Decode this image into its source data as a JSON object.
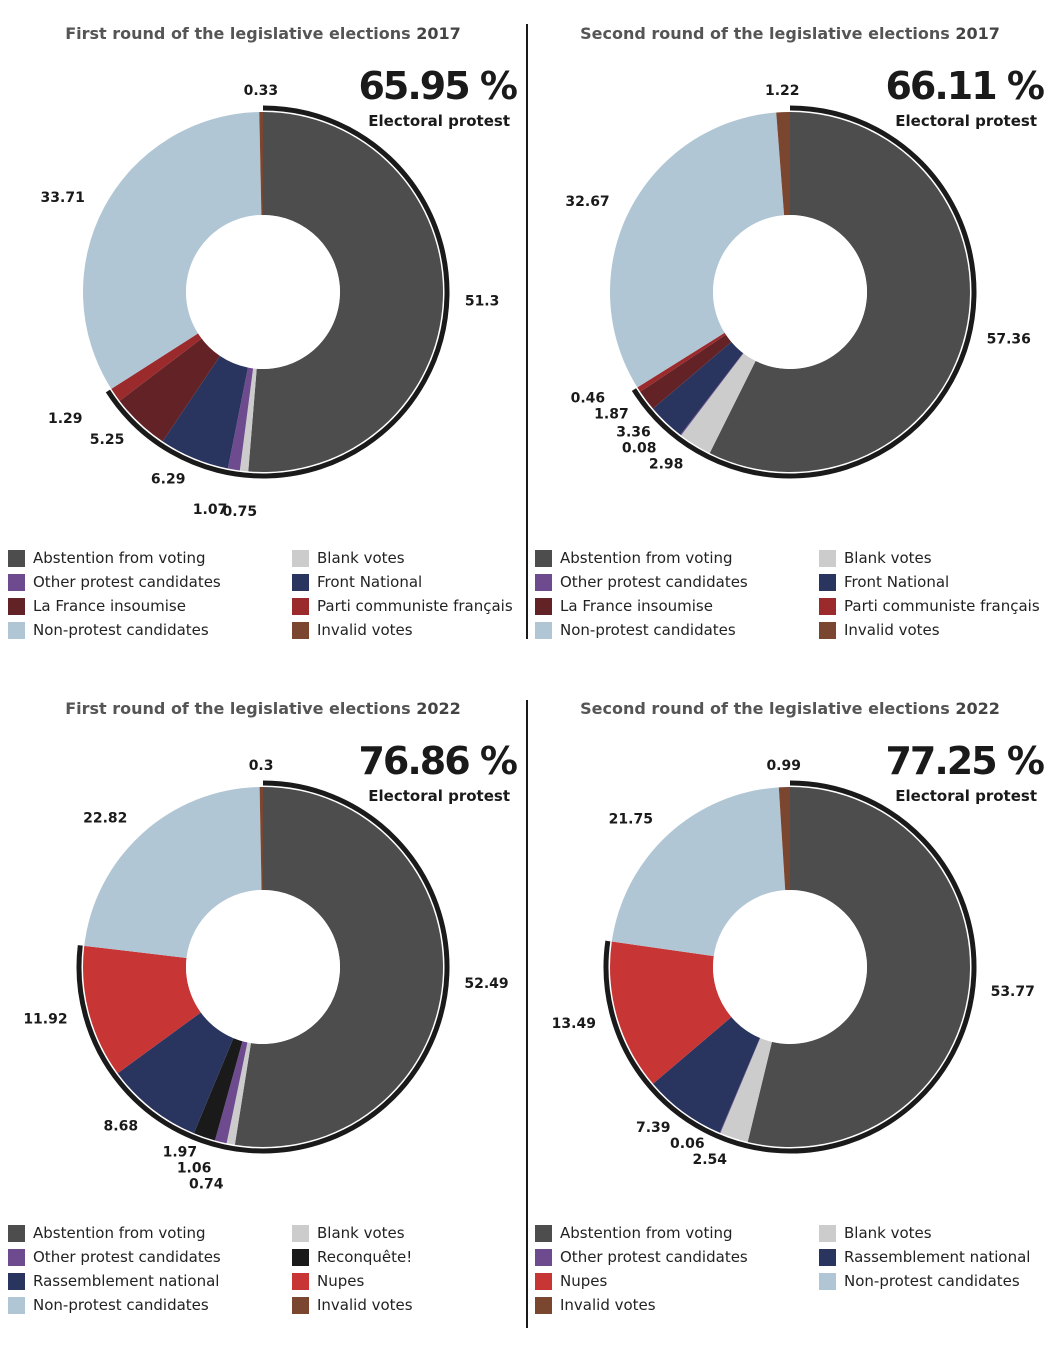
{
  "chart_data": [
    {
      "type": "pie",
      "title_prefix": "First round of the legislative elections",
      "title_year": "2017",
      "headline": "65.95 %",
      "headline_label": "Electoral protest",
      "slices": [
        {
          "name": "Abstention from voting",
          "value": 51.3,
          "label": "51.3",
          "color": "#4d4d4d",
          "protest": true
        },
        {
          "name": "Blank votes",
          "value": 0.75,
          "label": "0.75",
          "color": "#cccccc",
          "protest": true
        },
        {
          "name": "Other protest candidates",
          "value": 1.07,
          "label": "1.07",
          "color": "#6e4a8e",
          "protest": true
        },
        {
          "name": "Front National",
          "value": 6.29,
          "label": "6.29",
          "color": "#2a355f",
          "protest": true
        },
        {
          "name": "La France insoumise",
          "value": 5.25,
          "label": "5.25",
          "color": "#632225",
          "protest": true
        },
        {
          "name": "Parti communiste français",
          "value": 1.29,
          "label": "1.29",
          "color": "#9a2a2c",
          "protest": true
        },
        {
          "name": "Non-protest candidates",
          "value": 33.71,
          "label": "33.71",
          "color": "#b1c6d4",
          "protest": false
        },
        {
          "name": "Invalid votes",
          "value": 0.33,
          "label": "0.33",
          "color": "#7a4630",
          "protest": false
        }
      ],
      "legend": [
        "Abstention from voting",
        "Blank votes",
        "Other protest candidates",
        "Front National",
        "La France insoumise",
        "Parti communiste français",
        "Non-protest candidates",
        "Invalid votes"
      ]
    },
    {
      "type": "pie",
      "title_prefix": "Second round of the legislative elections",
      "title_year": "2017",
      "headline": "66.11 %",
      "headline_label": "Electoral protest",
      "slices": [
        {
          "name": "Abstention from voting",
          "value": 57.36,
          "label": "57.36",
          "color": "#4d4d4d",
          "protest": true
        },
        {
          "name": "Blank votes",
          "value": 2.98,
          "label": "2.98",
          "color": "#cccccc",
          "protest": true
        },
        {
          "name": "Other protest candidates",
          "value": 0.08,
          "label": "0.08",
          "color": "#6e4a8e",
          "protest": true
        },
        {
          "name": "Front National",
          "value": 3.36,
          "label": "3.36",
          "color": "#2a355f",
          "protest": true
        },
        {
          "name": "La France insoumise",
          "value": 1.87,
          "label": "1.87",
          "color": "#632225",
          "protest": true
        },
        {
          "name": "Parti communiste français",
          "value": 0.46,
          "label": "0.46",
          "color": "#9a2a2c",
          "protest": true
        },
        {
          "name": "Non-protest candidates",
          "value": 32.67,
          "label": "32.67",
          "color": "#b1c6d4",
          "protest": false
        },
        {
          "name": "Invalid votes",
          "value": 1.22,
          "label": "1.22",
          "color": "#7a4630",
          "protest": false
        }
      ],
      "legend": [
        "Abstention from voting",
        "Blank votes",
        "Other protest candidates",
        "Front National",
        "La France insoumise",
        "Parti communiste français",
        "Non-protest candidates",
        "Invalid votes"
      ]
    },
    {
      "type": "pie",
      "title_prefix": "First round of the legislative elections",
      "title_year": "2022",
      "headline": "76.86 %",
      "headline_label": "Electoral protest",
      "slices": [
        {
          "name": "Abstention from voting",
          "value": 52.49,
          "label": "52.49",
          "color": "#4d4d4d",
          "protest": true
        },
        {
          "name": "Blank votes",
          "value": 0.74,
          "label": "0.74",
          "color": "#cccccc",
          "protest": true
        },
        {
          "name": "Other protest candidates",
          "value": 1.06,
          "label": "1.06",
          "color": "#6e4a8e",
          "protest": true
        },
        {
          "name": "Reconquête!",
          "value": 1.97,
          "label": "1.97",
          "color": "#1a1a1a",
          "protest": true
        },
        {
          "name": "Rassemblement national",
          "value": 8.68,
          "label": "8.68",
          "color": "#2a355f",
          "protest": true
        },
        {
          "name": "Nupes",
          "value": 11.92,
          "label": "11.92",
          "color": "#c83535",
          "protest": true
        },
        {
          "name": "Non-protest candidates",
          "value": 22.82,
          "label": "22.82",
          "color": "#b1c6d4",
          "protest": false
        },
        {
          "name": "Invalid votes",
          "value": 0.3,
          "label": "0.3",
          "color": "#7a4630",
          "protest": false
        }
      ],
      "legend": [
        "Abstention from voting",
        "Blank votes",
        "Other protest candidates",
        "Reconquête!",
        "Rassemblement national",
        "Nupes",
        "Non-protest candidates",
        "Invalid votes"
      ]
    },
    {
      "type": "pie",
      "title_prefix": "Second round of the legislative elections",
      "title_year": "2022",
      "headline": "77.25 %",
      "headline_label": "Electoral protest",
      "slices": [
        {
          "name": "Abstention from voting",
          "value": 53.77,
          "label": "53.77",
          "color": "#4d4d4d",
          "protest": true
        },
        {
          "name": "Blank votes",
          "value": 2.54,
          "label": "2.54",
          "color": "#cccccc",
          "protest": true
        },
        {
          "name": "Other protest candidates",
          "value": 0.06,
          "label": "0.06",
          "color": "#6e4a8e",
          "protest": true
        },
        {
          "name": "Rassemblement national",
          "value": 7.39,
          "label": "7.39",
          "color": "#2a355f",
          "protest": true
        },
        {
          "name": "Nupes",
          "value": 13.49,
          "label": "13.49",
          "color": "#c83535",
          "protest": true
        },
        {
          "name": "Non-protest candidates",
          "value": 21.75,
          "label": "21.75",
          "color": "#b1c6d4",
          "protest": false
        },
        {
          "name": "Invalid votes",
          "value": 0.99,
          "label": "0.99",
          "color": "#7a4630",
          "protest": false
        }
      ],
      "legend": [
        "Abstention from voting",
        "Blank votes",
        "Other protest candidates",
        "Rassemblement national",
        "Nupes",
        "Non-protest candidates",
        "Invalid votes"
      ]
    }
  ]
}
